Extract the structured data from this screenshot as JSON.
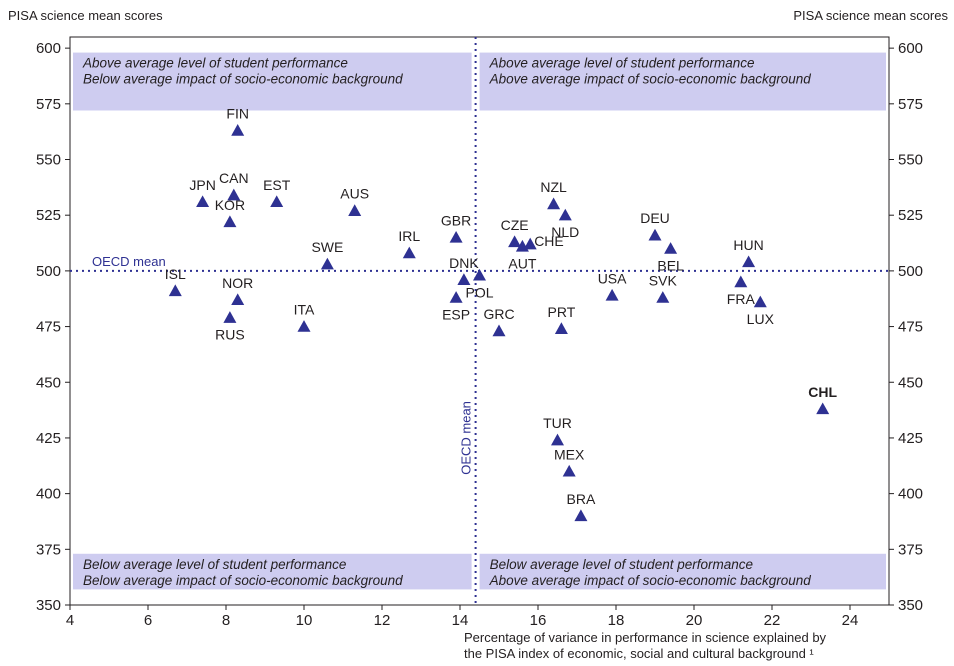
{
  "chart_data": {
    "type": "scatter",
    "ylabel_left": "PISA science mean scores",
    "ylabel_right": "PISA science mean scores",
    "xlabel_line1": "Percentage of variance in performance in science explained by",
    "xlabel_line2": "the PISA index of economic, social and cultural background ¹",
    "xlim": [
      4,
      25
    ],
    "ylim": [
      350,
      605
    ],
    "xticks": [
      4,
      6,
      8,
      10,
      12,
      14,
      16,
      18,
      20,
      22,
      24
    ],
    "yticks": [
      350,
      375,
      400,
      425,
      450,
      475,
      500,
      525,
      550,
      575,
      600
    ],
    "grid": false,
    "oecd_mean": {
      "x": 14.4,
      "y": 500,
      "label_h": "OECD mean",
      "label_v": "OECD mean"
    },
    "quadrants": [
      {
        "position": "top-left",
        "line1": "Above average level of student performance",
        "line2": "Below average impact of socio-economic background"
      },
      {
        "position": "top-right",
        "line1": "Above average level of student performance",
        "line2": "Above average impact of socio-economic background"
      },
      {
        "position": "bottom-left",
        "line1": "Below average level of student performance",
        "line2": "Below average impact of socio-economic background"
      },
      {
        "position": "bottom-right",
        "line1": "Below average level of student performance",
        "line2": "Above average impact of socio-economic background"
      }
    ],
    "colors": {
      "marker": "#2e3192",
      "band": "#ceccf0",
      "mean_line": "#2e3192",
      "text": "#231f20"
    },
    "points": [
      {
        "label": "FIN",
        "x": 8.3,
        "y": 563,
        "label_pos": "above"
      },
      {
        "label": "JPN",
        "x": 7.4,
        "y": 531,
        "label_pos": "above"
      },
      {
        "label": "CAN",
        "x": 8.2,
        "y": 534,
        "label_pos": "above"
      },
      {
        "label": "KOR",
        "x": 8.1,
        "y": 522,
        "label_pos": "above"
      },
      {
        "label": "EST",
        "x": 9.3,
        "y": 531,
        "label_pos": "above"
      },
      {
        "label": "AUS",
        "x": 11.3,
        "y": 527,
        "label_pos": "above"
      },
      {
        "label": "IRL",
        "x": 12.7,
        "y": 508,
        "label_pos": "above"
      },
      {
        "label": "GBR",
        "x": 13.9,
        "y": 515,
        "label_pos": "above"
      },
      {
        "label": "SWE",
        "x": 10.6,
        "y": 503,
        "label_pos": "above"
      },
      {
        "label": "ISL",
        "x": 6.7,
        "y": 491,
        "label_pos": "above"
      },
      {
        "label": "NOR",
        "x": 8.3,
        "y": 487,
        "label_pos": "above"
      },
      {
        "label": "RUS",
        "x": 8.1,
        "y": 479,
        "label_pos": "below"
      },
      {
        "label": "ITA",
        "x": 10.0,
        "y": 475,
        "label_pos": "above"
      },
      {
        "label": "DNK",
        "x": 14.1,
        "y": 496,
        "label_pos": "above"
      },
      {
        "label": "POL",
        "x": 14.5,
        "y": 498,
        "label_pos": "below"
      },
      {
        "label": "ESP",
        "x": 13.9,
        "y": 488,
        "label_pos": "below"
      },
      {
        "label": "CZE",
        "x": 15.4,
        "y": 513,
        "label_pos": "above"
      },
      {
        "label": "CHE",
        "x": 15.8,
        "y": 512,
        "label_pos": "right"
      },
      {
        "label": "AUT",
        "x": 15.6,
        "y": 511,
        "label_pos": "below"
      },
      {
        "label": "NZL",
        "x": 16.4,
        "y": 530,
        "label_pos": "above"
      },
      {
        "label": "NLD",
        "x": 16.7,
        "y": 525,
        "label_pos": "below"
      },
      {
        "label": "GRC",
        "x": 15.0,
        "y": 473,
        "label_pos": "above"
      },
      {
        "label": "PRT",
        "x": 16.6,
        "y": 474,
        "label_pos": "above"
      },
      {
        "label": "USA",
        "x": 17.9,
        "y": 489,
        "label_pos": "above"
      },
      {
        "label": "DEU",
        "x": 19.0,
        "y": 516,
        "label_pos": "above"
      },
      {
        "label": "BEL",
        "x": 19.4,
        "y": 510,
        "label_pos": "below"
      },
      {
        "label": "SVK",
        "x": 19.2,
        "y": 488,
        "label_pos": "above"
      },
      {
        "label": "HUN",
        "x": 21.4,
        "y": 504,
        "label_pos": "above"
      },
      {
        "label": "FRA",
        "x": 21.2,
        "y": 495,
        "label_pos": "below"
      },
      {
        "label": "LUX",
        "x": 21.7,
        "y": 486,
        "label_pos": "below"
      },
      {
        "label": "CHL",
        "x": 23.3,
        "y": 438,
        "label_pos": "above",
        "bold": true
      },
      {
        "label": "TUR",
        "x": 16.5,
        "y": 424,
        "label_pos": "above"
      },
      {
        "label": "MEX",
        "x": 16.8,
        "y": 410,
        "label_pos": "above"
      },
      {
        "label": "BRA",
        "x": 17.1,
        "y": 390,
        "label_pos": "above"
      }
    ]
  }
}
